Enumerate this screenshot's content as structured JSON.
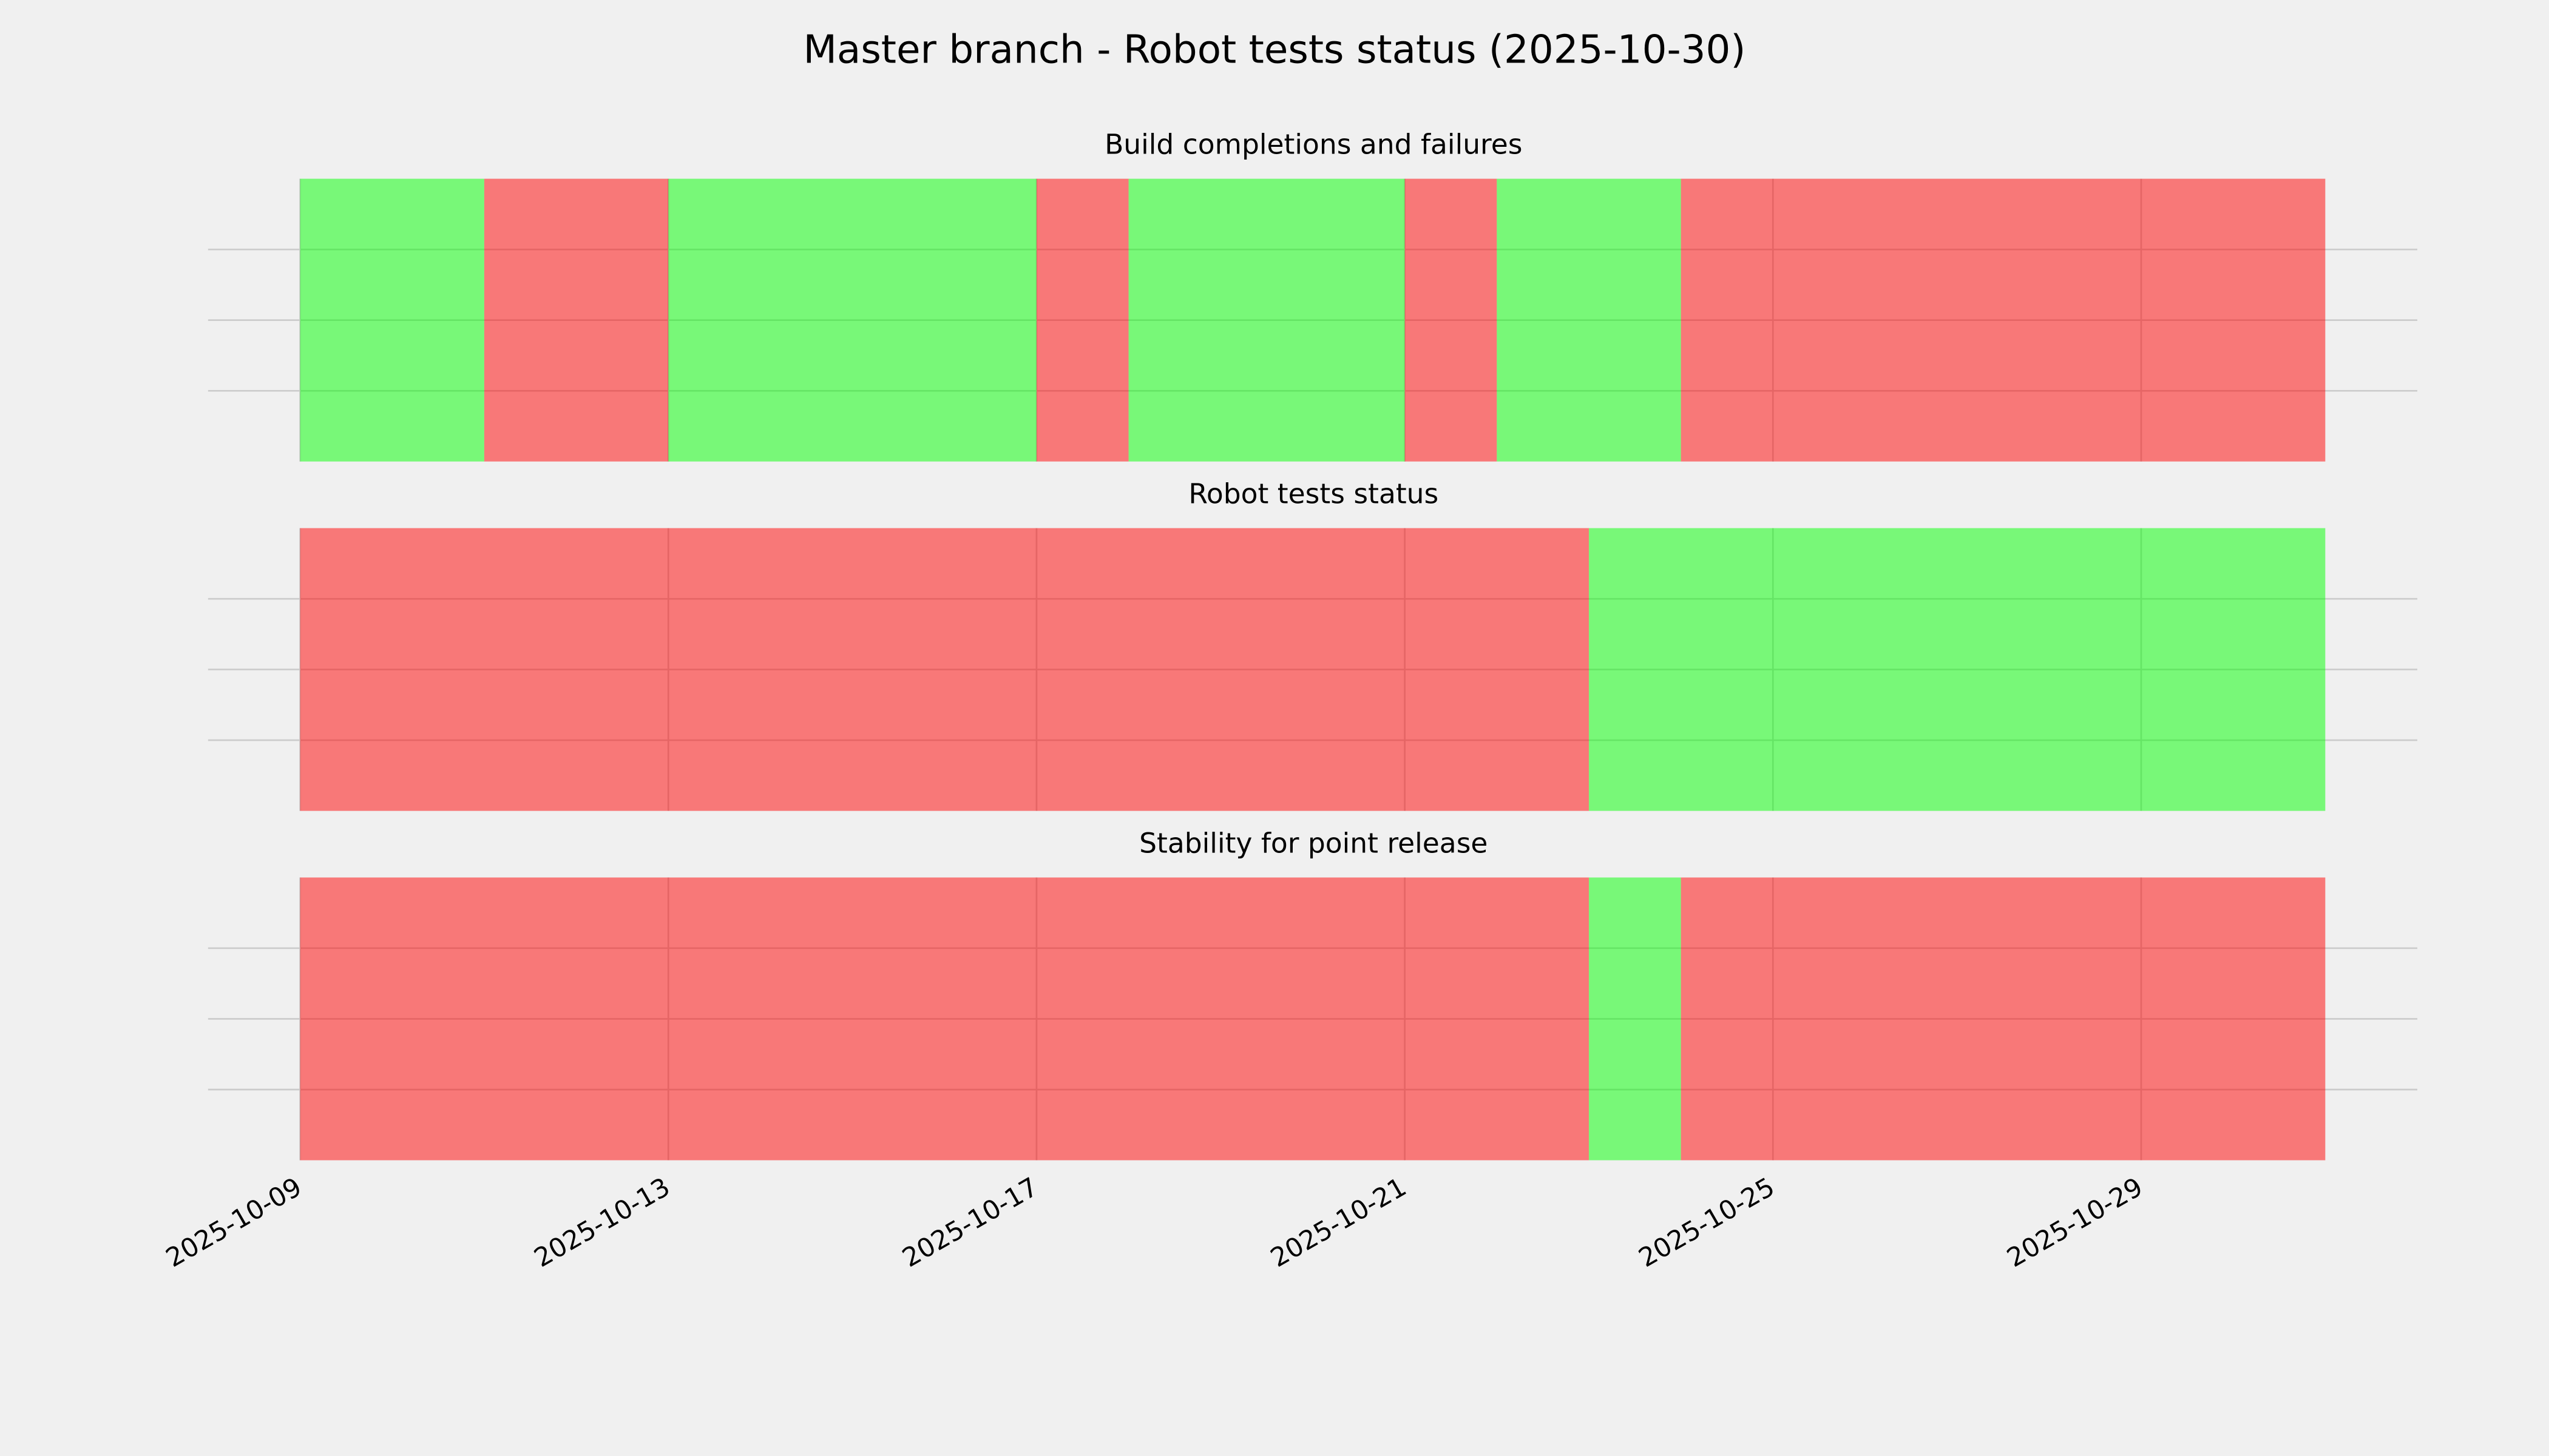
{
  "title": "Master branch - Robot tests status (2025-10-30)",
  "x_axis": {
    "xlim": [
      "2025-10-08",
      "2025-11-01"
    ],
    "xticks": [
      "2025-10-09",
      "2025-10-13",
      "2025-10-17",
      "2025-10-21",
      "2025-10-25",
      "2025-10-29"
    ]
  },
  "chart_data": [
    {
      "type": "timeline",
      "title": "Build completions and failures",
      "ylim": [
        0,
        1
      ],
      "yticks": [
        0.25,
        0.5,
        0.75
      ],
      "grid": true,
      "alpha": 0.5,
      "segments": [
        {
          "start": "2025-10-09",
          "end": "2025-10-11",
          "color": "lime"
        },
        {
          "start": "2025-10-11",
          "end": "2025-10-13",
          "color": "red"
        },
        {
          "start": "2025-10-13",
          "end": "2025-10-17",
          "color": "lime"
        },
        {
          "start": "2025-10-17",
          "end": "2025-10-18",
          "color": "red"
        },
        {
          "start": "2025-10-18",
          "end": "2025-10-21",
          "color": "lime"
        },
        {
          "start": "2025-10-21",
          "end": "2025-10-22",
          "color": "red"
        },
        {
          "start": "2025-10-22",
          "end": "2025-10-24",
          "color": "lime"
        },
        {
          "start": "2025-10-24",
          "end": "2025-10-31",
          "color": "red"
        }
      ]
    },
    {
      "type": "timeline",
      "title": "Robot tests status",
      "ylim": [
        0,
        1
      ],
      "yticks": [
        0.25,
        0.5,
        0.75
      ],
      "grid": true,
      "alpha": 0.5,
      "segments": [
        {
          "start": "2025-10-09",
          "end": "2025-10-23",
          "color": "red"
        },
        {
          "start": "2025-10-23",
          "end": "2025-10-31",
          "color": "lime"
        }
      ]
    },
    {
      "type": "timeline",
      "title": "Stability for point release",
      "ylim": [
        0,
        1
      ],
      "yticks": [
        0.25,
        0.5,
        0.75
      ],
      "grid": true,
      "alpha": 0.5,
      "segments": [
        {
          "start": "2025-10-09",
          "end": "2025-10-23",
          "color": "red"
        },
        {
          "start": "2025-10-23",
          "end": "2025-10-24",
          "color": "lime"
        },
        {
          "start": "2025-10-24",
          "end": "2025-10-31",
          "color": "red"
        }
      ]
    }
  ]
}
